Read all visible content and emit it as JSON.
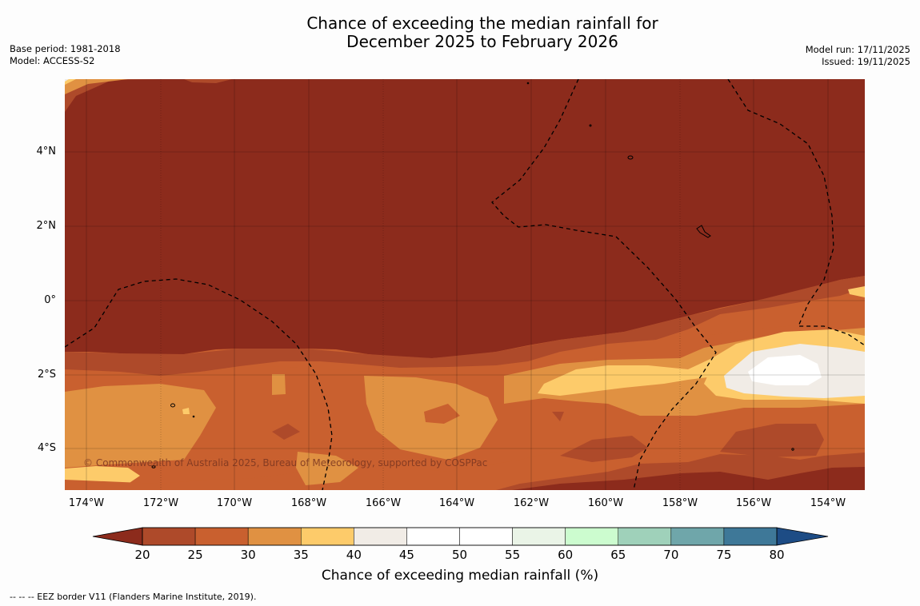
{
  "title_line1": "Chance of exceeding the median rainfall for",
  "title_line2": "December 2025 to February 2026",
  "meta_left": {
    "line1": "Base period: 1981-2018",
    "line2": "Model: ACCESS-S2"
  },
  "meta_right": {
    "line1": "Model run: 17/11/2025",
    "line2": "Issued: 19/11/2025"
  },
  "lat_labels": [
    "4°N",
    "2°N",
    "0°",
    "2°S",
    "4°S"
  ],
  "lon_labels": [
    "174°W",
    "172°W",
    "170°W",
    "168°W",
    "166°W",
    "164°W",
    "162°W",
    "160°W",
    "158°W",
    "156°W",
    "154°W"
  ],
  "copyright": "© Commonwealth of Australia 2025, Bureau of Meteorology, supported by COSPPac",
  "colorbar": {
    "ticks": [
      "20",
      "25",
      "30",
      "35",
      "40",
      "45",
      "50",
      "55",
      "60",
      "65",
      "70",
      "75",
      "80"
    ],
    "colors": [
      "#ae4a2a",
      "#c9602f",
      "#e09142",
      "#fdcb6a",
      "#f1ece6",
      "#ffffff",
      "#ffffff",
      "#eaf4e7",
      "#ccfccf",
      "#9fd1ba",
      "#6fa6aa",
      "#3e7898"
    ],
    "low_color": "#8c2b1c",
    "high_color": "#1d4c85",
    "title": "Chance of exceeding median rainfall (%)"
  },
  "footnote": "-- -- -- EEZ border V11 (Flanders Marine Institute, 2019)."
}
